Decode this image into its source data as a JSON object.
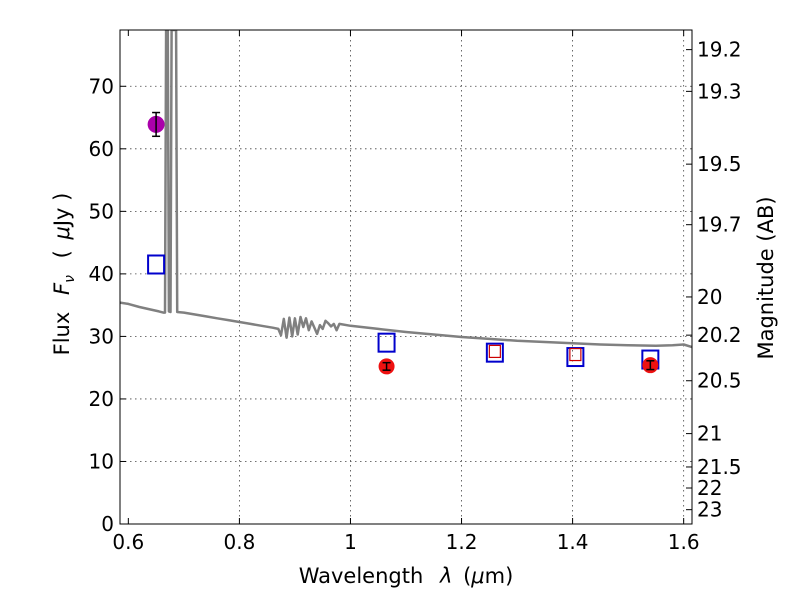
{
  "chart_data": {
    "type": "scatter",
    "x_tick_labels": [
      "0.6",
      "0.8",
      "1",
      "1.2",
      "1.4",
      "1.6"
    ],
    "x_ticks": [
      0.6,
      0.8,
      1.0,
      1.2,
      1.4,
      1.6
    ],
    "y_tick_labels": [
      "0",
      "10",
      "20",
      "30",
      "40",
      "50",
      "60",
      "70"
    ],
    "y_ticks": [
      0,
      10,
      20,
      30,
      40,
      50,
      60,
      70
    ],
    "right_tick_labels": [
      "19.2",
      "19.3",
      "19.5",
      "19.7",
      "20",
      "20.2",
      "20.5",
      "21",
      "21.5",
      "22",
      "23"
    ],
    "right_ticks": [
      19.2,
      19.3,
      19.5,
      19.7,
      20,
      20.2,
      20.5,
      21,
      21.5,
      22,
      23
    ],
    "xlim": [
      0.585,
      1.615
    ],
    "ylim": [
      0,
      79
    ],
    "xlabel_main": "Wavelength",
    "xlabel_symbol": "λ",
    "xlabel_unit_pre": "(",
    "xlabel_unit_mu": "μ",
    "xlabel_unit_post": "m)",
    "ylabel_main": "Flux",
    "ylabel_symbol": "F",
    "ylabel_subscript": "ν",
    "ylabel_unit_pre": "(",
    "ylabel_unit_mu": "μ",
    "ylabel_unit_post": "Jy )",
    "right_ylabel": "Magnitude (AB)",
    "grid": true,
    "series": [
      {
        "type": "line",
        "color": "#808080",
        "points": [
          [
            0.585,
            35.4
          ],
          [
            0.6,
            35.2
          ],
          [
            0.62,
            34.7
          ],
          [
            0.64,
            34.3
          ],
          [
            0.655,
            34.0
          ],
          [
            0.663,
            33.8
          ],
          [
            0.666,
            33.8
          ],
          [
            0.668,
            79
          ],
          [
            0.671,
            79
          ],
          [
            0.673,
            34
          ],
          [
            0.676,
            33.9
          ],
          [
            0.678,
            79
          ],
          [
            0.681,
            79
          ],
          [
            0.683,
            79
          ],
          [
            0.686,
            79
          ],
          [
            0.688,
            33.9
          ],
          [
            0.7,
            33.8
          ],
          [
            0.72,
            33.5
          ],
          [
            0.74,
            33.2
          ],
          [
            0.76,
            32.9
          ],
          [
            0.78,
            32.6
          ],
          [
            0.8,
            32.3
          ],
          [
            0.82,
            32.0
          ],
          [
            0.84,
            31.7
          ],
          [
            0.86,
            31.4
          ],
          [
            0.87,
            31.2
          ],
          [
            0.875,
            30.2
          ],
          [
            0.88,
            32.8
          ],
          [
            0.885,
            29.8
          ],
          [
            0.89,
            33.0
          ],
          [
            0.895,
            30.0
          ],
          [
            0.9,
            32.9
          ],
          [
            0.905,
            30.3
          ],
          [
            0.91,
            33.1
          ],
          [
            0.915,
            31.5
          ],
          [
            0.92,
            32.9
          ],
          [
            0.925,
            31.0
          ],
          [
            0.93,
            32.4
          ],
          [
            0.94,
            30.4
          ],
          [
            0.945,
            31.8
          ],
          [
            0.95,
            31.2
          ],
          [
            0.955,
            32.5
          ],
          [
            0.96,
            32.1
          ],
          [
            0.965,
            31.6
          ],
          [
            0.97,
            32.0
          ],
          [
            0.975,
            31.0
          ],
          [
            0.98,
            32.0
          ],
          [
            1.0,
            31.7
          ],
          [
            1.05,
            31.2
          ],
          [
            1.1,
            30.7
          ],
          [
            1.15,
            30.3
          ],
          [
            1.2,
            29.9
          ],
          [
            1.25,
            29.6
          ],
          [
            1.3,
            29.3
          ],
          [
            1.35,
            29.1
          ],
          [
            1.4,
            28.9
          ],
          [
            1.45,
            28.7
          ],
          [
            1.5,
            28.6
          ],
          [
            1.55,
            28.5
          ],
          [
            1.58,
            28.6
          ],
          [
            1.6,
            28.7
          ],
          [
            1.615,
            28.3
          ]
        ]
      },
      {
        "type": "blue-squares",
        "color": "#0000cc",
        "points": [
          [
            0.65,
            41.5
          ],
          [
            1.065,
            29.0
          ],
          [
            1.26,
            27.4
          ],
          [
            1.405,
            26.7
          ],
          [
            1.54,
            26.3
          ]
        ]
      },
      {
        "type": "red-squares",
        "color": "#cc0000",
        "points": [
          [
            1.26,
            27.6
          ],
          [
            1.405,
            27.1
          ]
        ]
      },
      {
        "type": "red-points-errorbars",
        "color": "#ee1111",
        "points": [
          [
            1.065,
            25.2,
            0.6
          ],
          [
            1.54,
            25.4,
            0.7
          ]
        ]
      },
      {
        "type": "magenta-point-errorbar",
        "color": "#aa00aa",
        "points": [
          [
            0.65,
            63.9,
            1.9
          ]
        ]
      }
    ]
  }
}
